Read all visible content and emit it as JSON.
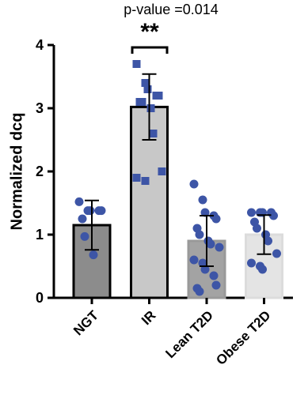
{
  "chart_data": {
    "type": "bar",
    "annotations": [
      "p-value =0.014",
      "**"
    ],
    "ylabel": "Normalized dcq",
    "categories": [
      "NGT",
      "IR",
      "Lean T2D",
      "Obese T2D"
    ],
    "values": [
      1.15,
      3.02,
      0.9,
      1.0
    ],
    "errors": [
      0.39,
      0.52,
      0.4,
      0.31
    ],
    "colors": [
      "#8c8c8c",
      "#c8c8c8",
      "#a3a3a3",
      "#e4e4e4"
    ],
    "edge_colors": [
      "#000000",
      "#000000",
      "#999999",
      "#dcdcdc"
    ],
    "point_color": "#3d55a6",
    "point_shapes": [
      "circle",
      "square",
      "circle",
      "circle"
    ],
    "points": [
      [
        1.52,
        1.38,
        1.38,
        1.38,
        1.38,
        1.25,
        0.97,
        0.68
      ],
      [
        3.7,
        3.4,
        3.3,
        3.2,
        3.2,
        3.1,
        3.1,
        3.0,
        2.6,
        2.0,
        1.9,
        1.85
      ],
      [
        1.8,
        1.55,
        1.35,
        1.3,
        1.25,
        1.1,
        1.0,
        0.9,
        0.85,
        0.8,
        0.6,
        0.55,
        0.45,
        0.35,
        0.2,
        0.15,
        0.1
      ],
      [
        1.35,
        1.35,
        1.35,
        1.35,
        1.3,
        1.2,
        1.1,
        1.0,
        0.9,
        0.7,
        0.55,
        0.5,
        0.45
      ]
    ],
    "ylim": [
      0,
      4
    ],
    "yticks": [
      0,
      1,
      2,
      3,
      4
    ]
  }
}
